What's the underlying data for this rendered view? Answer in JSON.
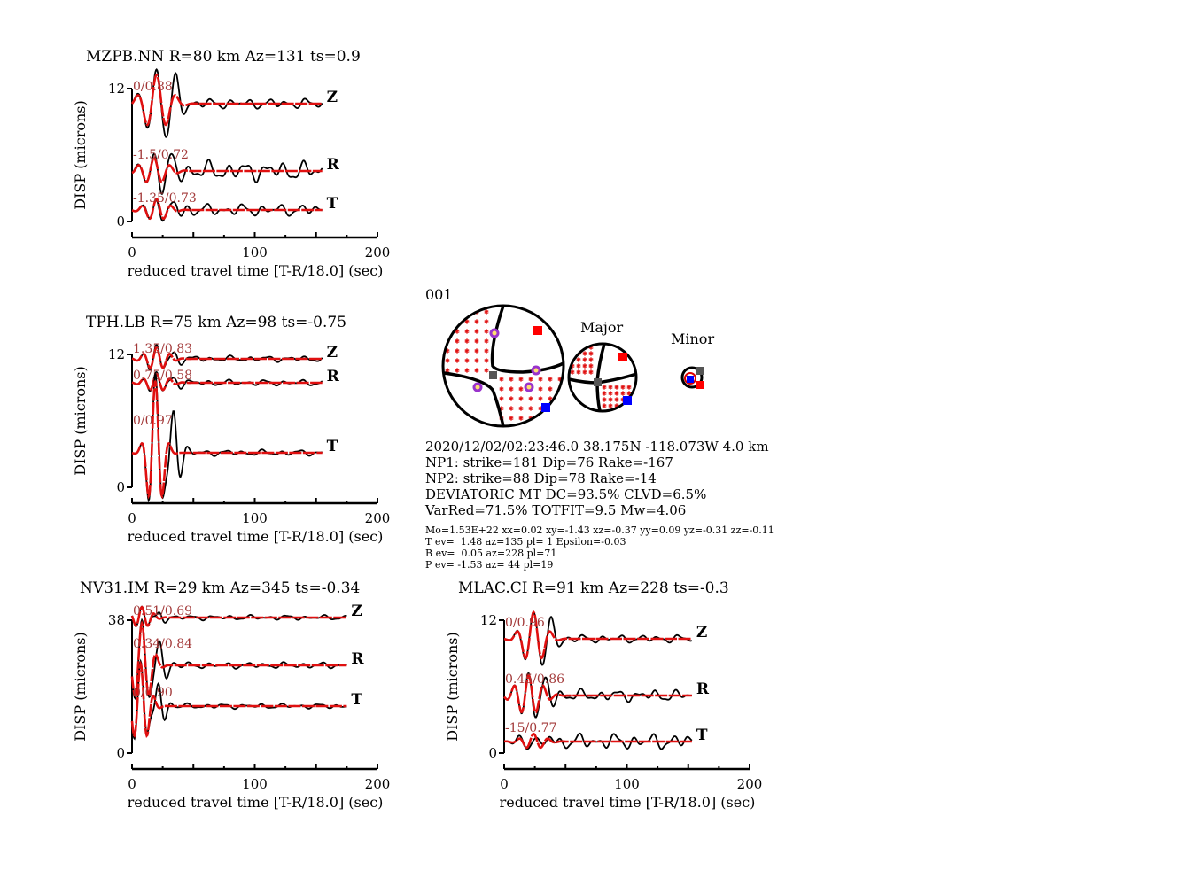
{
  "chart_data": [
    {
      "type": "line",
      "title": "MZPB.NN R=80 km Az=131 ts=0.9",
      "xlabel": "reduced travel time [T-R/18.0] (sec)",
      "ylabel": "DISP (microns)",
      "xlim": [
        0,
        200
      ],
      "ylim": [
        0,
        12
      ],
      "xticks": [
        "0",
        "100",
        "200"
      ],
      "yticks": [
        "0",
        "12"
      ],
      "tend": 155,
      "traces": [
        {
          "comp": "Z",
          "ann": "0/0.88",
          "base": 10.7,
          "A": 2.6,
          "P": 16,
          "tc": 20,
          "w": 14,
          "noise": 0.25
        },
        {
          "comp": "R",
          "ann": "-1.5/0.72",
          "base": 4.6,
          "A": 1.2,
          "P": 13,
          "tc": 18,
          "w": 14,
          "noise": 0.5
        },
        {
          "comp": "T",
          "ann": "-1.35/0.73",
          "base": 1.0,
          "A": 1.0,
          "P": 12,
          "tc": 20,
          "w": 12,
          "noise": 0.3
        }
      ]
    },
    {
      "type": "line",
      "title": "TPH.LB R=75 km Az=98 ts=-0.75",
      "xlabel": "reduced travel time [T-R/18.0] (sec)",
      "ylabel": "DISP (microns)",
      "xlim": [
        0,
        200
      ],
      "ylim": [
        0,
        12
      ],
      "xticks": [
        "0",
        "100",
        "200"
      ],
      "yticks": [
        "0",
        "12"
      ],
      "tend": 155,
      "traces": [
        {
          "comp": "Z",
          "ann": "1.35/0.83",
          "base": 11.6,
          "A": 1.0,
          "P": 11,
          "tc": 20,
          "w": 12,
          "noise": 0.15
        },
        {
          "comp": "R",
          "ann": "0.75/0.58",
          "base": 9.4,
          "A": 0.8,
          "P": 11,
          "tc": 20,
          "w": 12,
          "noise": 0.15
        },
        {
          "comp": "T",
          "ann": "0/0.97",
          "base": 3.1,
          "A": 6.5,
          "P": 12,
          "tc": 19,
          "w": 8,
          "noise": 0.15
        }
      ]
    },
    {
      "type": "line",
      "title": "NV31.IM R=29 km Az=345 ts=-0.34",
      "xlabel": "reduced travel time [T-R/18.0] (sec)",
      "ylabel": "DISP (microns)",
      "xlim": [
        0,
        200
      ],
      "ylim": [
        0,
        38
      ],
      "xticks": [
        "0",
        "100",
        "200"
      ],
      "yticks": [
        "0",
        "38"
      ],
      "tend": 175,
      "traces": [
        {
          "comp": "Z",
          "ann": "0.51/0.69",
          "base": 38.8,
          "A": 3.0,
          "P": 10,
          "tc": 8,
          "w": 10,
          "noise": 0.4
        },
        {
          "comp": "R",
          "ann": "0.34/0.84",
          "base": 25.2,
          "A": 12,
          "P": 12,
          "tc": 8,
          "w": 10,
          "noise": 0.5
        },
        {
          "comp": "T",
          "ann": "0/0.90",
          "base": 13.5,
          "A": 12,
          "P": 11,
          "tc": 7,
          "w": 9,
          "noise": 0.4
        }
      ]
    },
    {
      "type": "line",
      "title": "MLAC.CI R=91 km Az=228 ts=-0.3",
      "xlabel": "reduced travel time [T-R/18.0] (sec)",
      "ylabel": "DISP (microns)",
      "xlim": [
        0,
        200
      ],
      "ylim": [
        0,
        12
      ],
      "xticks": [
        "0",
        "100",
        "200"
      ],
      "yticks": [
        "0",
        "12"
      ],
      "tend": 153,
      "traces": [
        {
          "comp": "Z",
          "ann": "0/0.96",
          "base": 10.2,
          "A": 2.4,
          "P": 14,
          "tc": 24,
          "w": 12,
          "noise": 0.2
        },
        {
          "comp": "R",
          "ann": "0.45/0.86",
          "base": 5.1,
          "A": 1.8,
          "P": 12,
          "tc": 20,
          "w": 14,
          "noise": 0.3
        },
        {
          "comp": "T",
          "ann": "-15/0.77",
          "base": 1.0,
          "A": 0.7,
          "P": 12,
          "tc": 24,
          "w": 12,
          "noise": 0.4
        }
      ]
    }
  ],
  "mechanism": {
    "id": "001",
    "major_label": "Major",
    "minor_label": "Minor",
    "lines": [
      "2020/12/02/02:23:46.0 38.175N -118.073W 4.0 km",
      "NP1: strike=181 Dip=76 Rake=-167",
      "NP2: strike=88 Dip=78 Rake=-14",
      "DEVIATORIC MT DC=93.5% CLVD=6.5%",
      "VarRed=71.5% TOTFIT=9.5 Mw=4.06"
    ],
    "small_lines": [
      "Mo=1.53E+22 xx=0.02 xy=-1.43 xz=-0.37 yy=0.09 yz=-0.31 zz=-0.11",
      "T ev=  1.48 az=135 pl= 1 Epsilon=-0.03",
      "B ev=  0.05 az=228 pl=71",
      "P ev= -1.53 az= 44 pl=19"
    ]
  },
  "colors": {
    "observed": "#000000",
    "synthetic": "#e01010",
    "annotation": "#a33a3a",
    "T_axis": "#ff0000",
    "P_axis": "#0000ff",
    "B_axis": "#555555",
    "station": "#9933cc"
  }
}
